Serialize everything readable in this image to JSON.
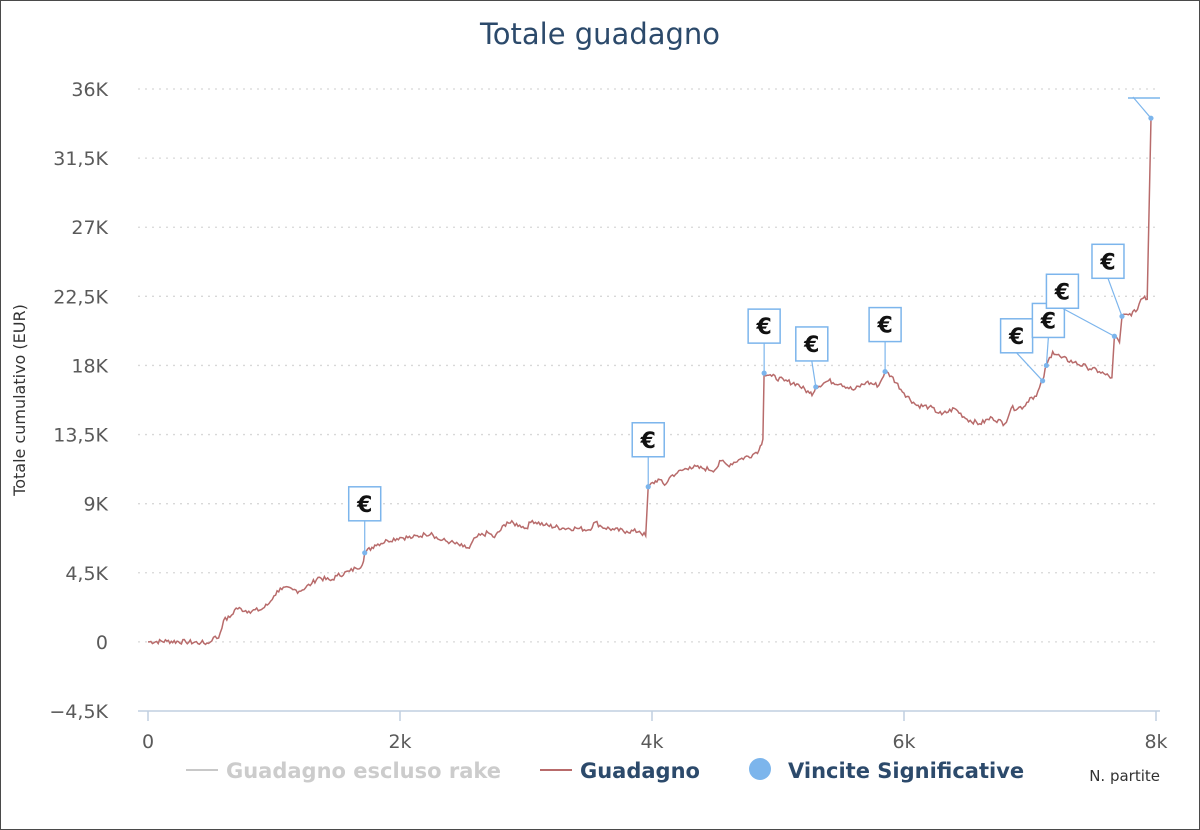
{
  "chart_data": {
    "type": "line",
    "title": "Totale guadagno",
    "xlabel": "N. partite",
    "ylabel": "Totale cumulativo (EUR)",
    "xlim": [
      -150,
      8030
    ],
    "ylim": [
      -4500,
      36000
    ],
    "x_ticks": [
      0,
      2000,
      4000,
      6000,
      8000
    ],
    "x_tick_labels": [
      "0",
      "2k",
      "4k",
      "6k",
      "8k"
    ],
    "y_ticks": [
      -4500,
      0,
      4500,
      9000,
      13500,
      18000,
      22500,
      27000,
      31500,
      36000
    ],
    "y_tick_labels": [
      "−4,5K",
      "0",
      "4,5K",
      "9K",
      "13,5K",
      "18K",
      "22,5K",
      "27K",
      "31,5K",
      "36K"
    ],
    "grid": true,
    "legend_placement": "bottom",
    "colors": {
      "guadagno": "#b86b6b",
      "rake": "#c8c8c8",
      "vincite": "#7cb5ec",
      "title": "#2c4a6b"
    },
    "legend": [
      {
        "label": "Guadagno escluso rake",
        "symbol": "line",
        "color": "#c8c8c8",
        "text_color": "#cccccc"
      },
      {
        "label": "Guadagno",
        "symbol": "line",
        "color": "#b86b6b",
        "text_color": "#2c4a6b"
      },
      {
        "label": "Vincite Significative",
        "symbol": "circle",
        "color": "#7cb5ec",
        "text_color": "#2c4a6b"
      }
    ],
    "series": [
      {
        "name": "Guadagno",
        "points": [
          [
            0,
            0
          ],
          [
            150,
            50
          ],
          [
            300,
            0
          ],
          [
            420,
            -50
          ],
          [
            480,
            -100
          ],
          [
            520,
            300
          ],
          [
            560,
            250
          ],
          [
            600,
            1400
          ],
          [
            650,
            1600
          ],
          [
            700,
            2200
          ],
          [
            800,
            2000
          ],
          [
            900,
            2100
          ],
          [
            960,
            2500
          ],
          [
            1000,
            3000
          ],
          [
            1050,
            3500
          ],
          [
            1150,
            3400
          ],
          [
            1200,
            3300
          ],
          [
            1300,
            3800
          ],
          [
            1350,
            4200
          ],
          [
            1450,
            4000
          ],
          [
            1500,
            4300
          ],
          [
            1600,
            4600
          ],
          [
            1650,
            4800
          ],
          [
            1700,
            5000
          ],
          [
            1720,
            5800
          ],
          [
            1800,
            6300
          ],
          [
            1900,
            6600
          ],
          [
            2000,
            6800
          ],
          [
            2100,
            6800
          ],
          [
            2200,
            7000
          ],
          [
            2250,
            7100
          ],
          [
            2300,
            6700
          ],
          [
            2400,
            6500
          ],
          [
            2500,
            6200
          ],
          [
            2550,
            6100
          ],
          [
            2600,
            6800
          ],
          [
            2700,
            7100
          ],
          [
            2750,
            6800
          ],
          [
            2850,
            7800
          ],
          [
            2950,
            7600
          ],
          [
            3000,
            7400
          ],
          [
            3050,
            7900
          ],
          [
            3150,
            7600
          ],
          [
            3300,
            7400
          ],
          [
            3400,
            7400
          ],
          [
            3500,
            7300
          ],
          [
            3550,
            7800
          ],
          [
            3600,
            7500
          ],
          [
            3700,
            7300
          ],
          [
            3800,
            7200
          ],
          [
            3900,
            7200
          ],
          [
            3950,
            6900
          ],
          [
            3970,
            10100
          ],
          [
            4050,
            10600
          ],
          [
            4100,
            10200
          ],
          [
            4150,
            10800
          ],
          [
            4200,
            11000
          ],
          [
            4300,
            11400
          ],
          [
            4400,
            11300
          ],
          [
            4500,
            11200
          ],
          [
            4550,
            11800
          ],
          [
            4600,
            11500
          ],
          [
            4700,
            11900
          ],
          [
            4800,
            12200
          ],
          [
            4850,
            12500
          ],
          [
            4880,
            13200
          ],
          [
            4890,
            17500
          ],
          [
            4950,
            17300
          ],
          [
            5050,
            17000
          ],
          [
            5150,
            16800
          ],
          [
            5250,
            16200
          ],
          [
            5280,
            16200
          ],
          [
            5300,
            16600
          ],
          [
            5400,
            17000
          ],
          [
            5500,
            16800
          ],
          [
            5600,
            16400
          ],
          [
            5700,
            16900
          ],
          [
            5800,
            16700
          ],
          [
            5850,
            17600
          ],
          [
            5900,
            17300
          ],
          [
            6000,
            16200
          ],
          [
            6100,
            15400
          ],
          [
            6200,
            15300
          ],
          [
            6300,
            14800
          ],
          [
            6400,
            15200
          ],
          [
            6500,
            14500
          ],
          [
            6600,
            14200
          ],
          [
            6700,
            14600
          ],
          [
            6800,
            14200
          ],
          [
            6850,
            15200
          ],
          [
            6950,
            15300
          ],
          [
            7000,
            15900
          ],
          [
            7050,
            16000
          ],
          [
            7100,
            17000
          ],
          [
            7130,
            18000
          ],
          [
            7180,
            18900
          ],
          [
            7250,
            18500
          ],
          [
            7350,
            18200
          ],
          [
            7450,
            17900
          ],
          [
            7550,
            17600
          ],
          [
            7600,
            17400
          ],
          [
            7650,
            17200
          ],
          [
            7670,
            19900
          ],
          [
            7710,
            19500
          ],
          [
            7730,
            21200
          ],
          [
            7780,
            21300
          ],
          [
            7840,
            21500
          ],
          [
            7880,
            22300
          ],
          [
            7910,
            22500
          ],
          [
            7930,
            22300
          ],
          [
            7960,
            34100
          ]
        ]
      }
    ],
    "markers": [
      {
        "x": 1720,
        "y": 5800,
        "label": "€"
      },
      {
        "x": 3970,
        "y": 10100,
        "label": "€"
      },
      {
        "x": 4890,
        "y": 17500,
        "label": "€"
      },
      {
        "x": 5300,
        "y": 16600,
        "label": "€"
      },
      {
        "x": 5850,
        "y": 17600,
        "label": "€"
      },
      {
        "x": 7100,
        "y": 17000,
        "label": "€"
      },
      {
        "x": 7130,
        "y": 18000,
        "label": "€"
      },
      {
        "x": 7670,
        "y": 19900,
        "label": "€"
      },
      {
        "x": 7730,
        "y": 21200,
        "label": "€"
      },
      {
        "x": 7960,
        "y": 34100,
        "label": "€"
      }
    ]
  }
}
